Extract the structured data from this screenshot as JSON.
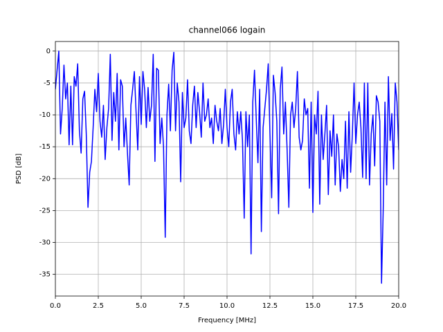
{
  "chart_data": {
    "type": "line",
    "title": "channel066 logain",
    "xlabel": "Frequency [MHz]",
    "ylabel": "PSD [dB]",
    "x": [
      0.0,
      0.1,
      0.2,
      0.3,
      0.4,
      0.5,
      0.6,
      0.7,
      0.8,
      0.9,
      1.0,
      1.1,
      1.2,
      1.3,
      1.4,
      1.5,
      1.6,
      1.7,
      1.8,
      1.9,
      2.0,
      2.1,
      2.2,
      2.3,
      2.4,
      2.5,
      2.6,
      2.7,
      2.8,
      2.9,
      3.0,
      3.1,
      3.2,
      3.3,
      3.4,
      3.5,
      3.6,
      3.7,
      3.8,
      3.9,
      4.0,
      4.1,
      4.2,
      4.3,
      4.4,
      4.5,
      4.6,
      4.7,
      4.8,
      4.9,
      5.0,
      5.1,
      5.2,
      5.3,
      5.4,
      5.5,
      5.6,
      5.7,
      5.8,
      5.9,
      6.0,
      6.1,
      6.2,
      6.3,
      6.4,
      6.5,
      6.6,
      6.7,
      6.8,
      6.9,
      7.0,
      7.1,
      7.2,
      7.3,
      7.4,
      7.5,
      7.6,
      7.7,
      7.8,
      7.9,
      8.0,
      8.1,
      8.2,
      8.3,
      8.4,
      8.5,
      8.6,
      8.7,
      8.8,
      8.9,
      9.0,
      9.1,
      9.2,
      9.3,
      9.4,
      9.5,
      9.6,
      9.7,
      9.8,
      9.9,
      10.0,
      10.1,
      10.2,
      10.3,
      10.4,
      10.5,
      10.6,
      10.7,
      10.8,
      10.9,
      11.0,
      11.1,
      11.2,
      11.3,
      11.4,
      11.5,
      11.6,
      11.7,
      11.8,
      11.9,
      12.0,
      12.1,
      12.2,
      12.3,
      12.4,
      12.5,
      12.6,
      12.7,
      12.8,
      12.9,
      13.0,
      13.1,
      13.2,
      13.3,
      13.4,
      13.5,
      13.6,
      13.7,
      13.8,
      13.9,
      14.0,
      14.1,
      14.2,
      14.3,
      14.4,
      14.5,
      14.6,
      14.7,
      14.8,
      14.9,
      15.0,
      15.1,
      15.2,
      15.3,
      15.4,
      15.5,
      15.6,
      15.7,
      15.8,
      15.9,
      16.0,
      16.1,
      16.2,
      16.3,
      16.4,
      16.5,
      16.6,
      16.7,
      16.8,
      16.9,
      17.0,
      17.1,
      17.2,
      17.3,
      17.4,
      17.5,
      17.6,
      17.7,
      17.8,
      17.9,
      18.0,
      18.1,
      18.2,
      18.3,
      18.4,
      18.5,
      18.6,
      18.7,
      18.8,
      18.9,
      19.0,
      19.1,
      19.2,
      19.3,
      19.4,
      19.5,
      19.6,
      19.7,
      19.8,
      19.9,
      20.0
    ],
    "series": [
      {
        "name": "PSD",
        "color": "#0000ff",
        "values": [
          -6,
          -3,
          0,
          -13,
          -9,
          -2.2,
          -7.5,
          -5,
          -14.7,
          -5.5,
          -14.7,
          -4,
          -5.5,
          -2,
          -12.5,
          -16,
          -7.5,
          -6.3,
          -13,
          -24.5,
          -19,
          -17.3,
          -12,
          -6,
          -9.5,
          -3.5,
          -11,
          -13.5,
          -8.5,
          -17,
          -12,
          -9,
          -0.5,
          -14,
          -6.5,
          -11,
          -3.5,
          -15.5,
          -4.5,
          -5.5,
          -15,
          -10.5,
          -16,
          -21,
          -8.5,
          -6,
          -3.2,
          -9.5,
          -15.5,
          -4,
          -11.5,
          -3.2,
          -6,
          -12,
          -5.7,
          -11,
          -8.5,
          -0.5,
          -17.3,
          -2.7,
          -3,
          -14.5,
          -10.5,
          -15,
          -29.2,
          -10,
          -5.2,
          -12.5,
          -3,
          -0.2,
          -12.5,
          -5,
          -8,
          -20.5,
          -6.5,
          -12,
          -10.5,
          -4.5,
          -12.5,
          -14.5,
          -8.5,
          -5.5,
          -12,
          -6.5,
          -9.5,
          -13.5,
          -5,
          -11,
          -10,
          -7.5,
          -12,
          -10.5,
          -14.5,
          -8.5,
          -11,
          -12.5,
          -9,
          -14.5,
          -11.5,
          -6,
          -12,
          -15,
          -8,
          -6,
          -13,
          -15.5,
          -9.5,
          -13,
          -9.5,
          -14,
          -26.2,
          -9.5,
          -15,
          -10,
          -31.8,
          -8,
          -3,
          -10.5,
          -17.5,
          -6,
          -28.3,
          -12,
          -9,
          -6,
          -2,
          -13,
          -23,
          -3.8,
          -6.5,
          -11,
          -25.5,
          -6,
          -2.5,
          -13,
          -8,
          -15.5,
          -24.5,
          -10,
          -8,
          -12,
          -9,
          -3.2,
          -13.5,
          -15.5,
          -14,
          -7.5,
          -10,
          -9,
          -21.5,
          -8,
          -25.3,
          -10,
          -13,
          -6.3,
          -24,
          -10,
          -17,
          -13,
          -8.5,
          -22.5,
          -12.5,
          -16.5,
          -10,
          -21,
          -13,
          -15,
          -22,
          -17,
          -20,
          -11,
          -21.5,
          -9.5,
          -19,
          -13,
          -5,
          -14.5,
          -10,
          -8,
          -12,
          -19.8,
          -5,
          -20,
          -5,
          -21,
          -13,
          -10,
          -18,
          -7,
          -8,
          -11,
          -36.4,
          -24.6,
          -8,
          -21,
          -4,
          -14,
          -9.8,
          -18.5,
          -5,
          -8,
          -15.5
        ]
      }
    ],
    "xlim": [
      0,
      20
    ],
    "ylim": [
      -38.4,
      1.5
    ],
    "xticks": [
      {
        "value": 0,
        "label": "0.0"
      },
      2.5,
      {
        "value": 5,
        "label": "5.0"
      },
      7.5,
      {
        "value": 10,
        "label": "10.0"
      },
      12.5,
      {
        "value": 15,
        "label": "15.0"
      },
      17.5,
      {
        "value": 20,
        "label": "20.0"
      }
    ],
    "yticks": [
      0,
      -5,
      -10,
      -15,
      -20,
      -25,
      -30,
      -35
    ],
    "grid": true
  }
}
